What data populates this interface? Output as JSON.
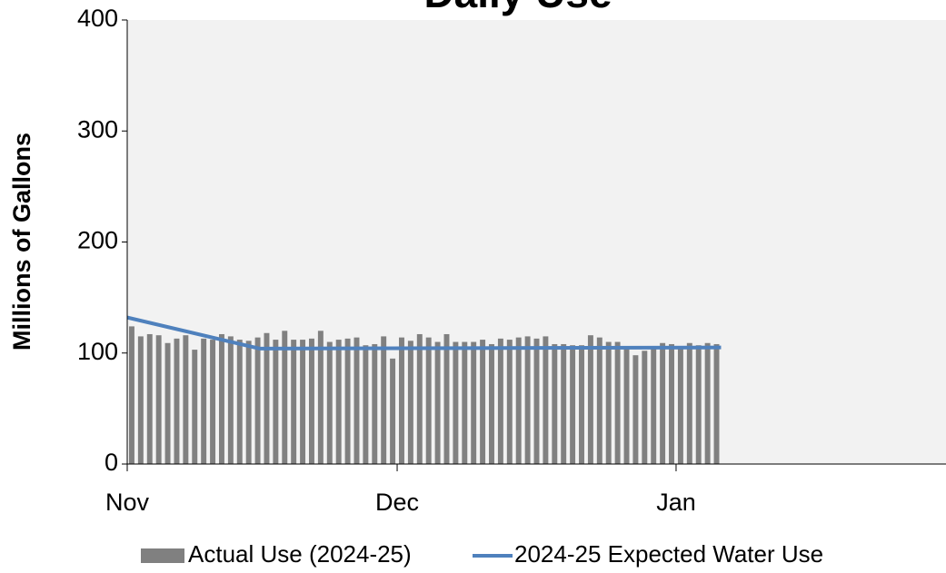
{
  "chart_data": {
    "type": "bar_line",
    "title": "Daily Use",
    "y_label": "Millions of Gallons",
    "xlim": [
      0,
      91
    ],
    "xticks": [
      {
        "value": 0,
        "label": "Nov"
      },
      {
        "value": 30,
        "label": "Dec"
      },
      {
        "value": 61,
        "label": "Jan"
      }
    ],
    "ylim": [
      0,
      400
    ],
    "yticks": [
      0,
      100,
      200,
      300,
      400
    ],
    "series": [
      {
        "name": "Actual Use (2024-25)",
        "type": "bar",
        "color": "#808080",
        "x": [
          0,
          1,
          2,
          3,
          4,
          5,
          6,
          7,
          8,
          9,
          10,
          11,
          12,
          13,
          14,
          15,
          16,
          17,
          18,
          19,
          20,
          21,
          22,
          23,
          24,
          25,
          26,
          27,
          28,
          29,
          30,
          31,
          32,
          33,
          34,
          35,
          36,
          37,
          38,
          39,
          40,
          41,
          42,
          43,
          44,
          45,
          46,
          47,
          48,
          49,
          50,
          51,
          52,
          53,
          54,
          55,
          56,
          57,
          58,
          59,
          60,
          61,
          62,
          63,
          64,
          65
        ],
        "values": [
          124,
          115,
          117,
          116,
          109,
          113,
          116,
          103,
          113,
          112,
          117,
          115,
          112,
          111,
          114,
          118,
          112,
          120,
          112,
          112,
          113,
          120,
          110,
          112,
          113,
          114,
          107,
          108,
          115,
          95,
          114,
          111,
          117,
          114,
          110,
          117,
          110,
          110,
          110,
          112,
          108,
          113,
          112,
          114,
          115,
          113,
          115,
          108,
          108,
          107,
          107,
          116,
          114,
          110,
          110,
          105,
          98,
          102,
          106,
          109,
          108,
          106,
          109,
          107,
          109,
          108
        ]
      },
      {
        "name": "2024-25 Expected Water Use",
        "type": "line",
        "color": "#4f81bd",
        "x": [
          0,
          14.7,
          66
        ],
        "values": [
          132,
          104,
          105
        ]
      }
    ]
  }
}
